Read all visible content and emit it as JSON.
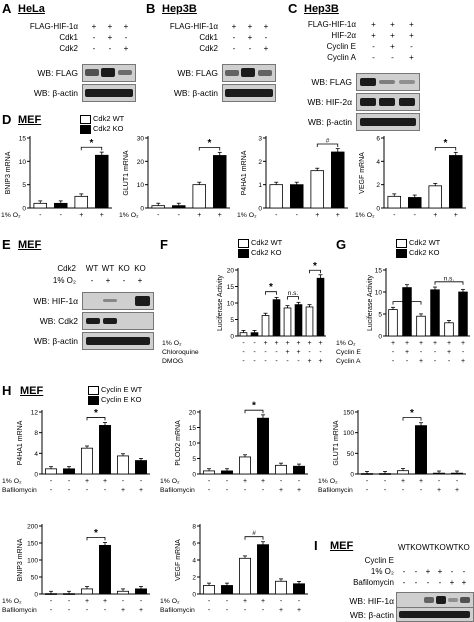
{
  "panels": {
    "A": {
      "letter": "A",
      "title": "HeLa",
      "rows": [
        "FLAG-HIF-1α",
        "Cdk1",
        "Cdk2"
      ],
      "signs": [
        [
          "+",
          "+",
          "+"
        ],
        [
          "-",
          "+",
          "-"
        ],
        [
          "-",
          "-",
          "+"
        ]
      ],
      "blots": [
        "WB: FLAG",
        "WB: β-actin"
      ]
    },
    "B": {
      "letter": "B",
      "title": "Hep3B",
      "rows": [
        "FLAG-HIF-1α",
        "Cdk1",
        "Cdk2"
      ],
      "signs": [
        [
          "+",
          "+",
          "+"
        ],
        [
          "-",
          "+",
          "-"
        ],
        [
          "-",
          "-",
          "+"
        ]
      ],
      "blots": [
        "WB: FLAG",
        "WB: β-actin"
      ]
    },
    "C": {
      "letter": "C",
      "title": "Hep3B",
      "rows": [
        "FLAG-HIF-1α",
        "HIF-2α",
        "Cyclin E",
        "Cyclin A"
      ],
      "signs": [
        [
          "+",
          "+",
          "+"
        ],
        [
          "+",
          "+",
          "+"
        ],
        [
          "-",
          "+",
          "-"
        ],
        [
          "-",
          "-",
          "+"
        ]
      ],
      "blots": [
        "WB: FLAG",
        "WB: HIF-2α",
        "WB: β-actin"
      ]
    },
    "D": {
      "letter": "D",
      "title": "MEF"
    },
    "E": {
      "letter": "E",
      "title": "MEF",
      "rows": [
        "Cdk2",
        "1% O₂"
      ],
      "headers": [
        "WT",
        "WT",
        "KO",
        "KO"
      ],
      "signs": [
        [
          "-",
          "+",
          "-",
          "+"
        ]
      ],
      "blots": [
        "WB: HIF-1α",
        "WB: Cdk2",
        "WB: β-actin"
      ]
    },
    "F": {
      "letter": "F"
    },
    "G": {
      "letter": "G"
    },
    "H": {
      "letter": "H",
      "title": "MEF"
    },
    "I": {
      "letter": "I",
      "title": "MEF",
      "rows": [
        "Cyclin E",
        "1% O₂",
        "Bafilomycin"
      ],
      "headers": [
        "WT",
        "KO",
        "WT",
        "KO",
        "WT",
        "KO"
      ],
      "signs": [
        [
          "-",
          "-",
          "+",
          "+",
          "-",
          "-"
        ],
        [
          "-",
          "-",
          "-",
          "-",
          "+",
          "+"
        ]
      ],
      "blots": [
        "WB: HIF-1α",
        "WB: β-actin"
      ]
    }
  },
  "legends": {
    "cdk2": [
      "Cdk2 WT",
      "Cdk2 KO"
    ],
    "cyclinE": [
      "Cyclin E WT",
      "Cyclin E KO"
    ]
  },
  "rowlabels": {
    "o2": "1% O₂",
    "chloroquine": "Chloroquine",
    "dmog": "DMOG",
    "cyclinE": "Cyclin E",
    "cyclinA": "Cyclin A",
    "bafilomycin": "Bafilomycin"
  },
  "chart_data": [
    {
      "id": "D1",
      "type": "bar",
      "ylabel": "BNIP3 mRNA",
      "ylim": [
        0,
        15
      ],
      "yticks": [
        0,
        5,
        10,
        15
      ],
      "series": [
        {
          "name": "Cdk2 WT",
          "values": [
            1.0,
            2.5
          ]
        },
        {
          "name": "Cdk2 KO",
          "values": [
            1.0,
            11.3
          ]
        }
      ],
      "conditions": {
        "1% O₂": [
          "-",
          "-",
          "+",
          "+"
        ]
      },
      "annotation": "*"
    },
    {
      "id": "D2",
      "type": "bar",
      "ylabel": "GLUT1 mRNA",
      "ylim": [
        0,
        30
      ],
      "yticks": [
        0,
        10,
        20,
        30
      ],
      "series": [
        {
          "name": "Cdk2 WT",
          "values": [
            1.0,
            10.0
          ]
        },
        {
          "name": "Cdk2 KO",
          "values": [
            1.0,
            22.5
          ]
        }
      ],
      "conditions": {
        "1% O₂": [
          "-",
          "-",
          "+",
          "+"
        ]
      },
      "annotation": "*"
    },
    {
      "id": "D3",
      "type": "bar",
      "ylabel": "P4HA1 mRNA",
      "ylim": [
        0,
        3
      ],
      "yticks": [
        0,
        1,
        2,
        3
      ],
      "series": [
        {
          "name": "Cdk2 WT",
          "values": [
            1.0,
            1.6
          ]
        },
        {
          "name": "Cdk2 KO",
          "values": [
            1.0,
            2.4
          ]
        }
      ],
      "conditions": {
        "1% O₂": [
          "-",
          "-",
          "+",
          "+"
        ]
      },
      "annotation": "#"
    },
    {
      "id": "D4",
      "type": "bar",
      "ylabel": "VEGF mRNA",
      "ylim": [
        0,
        6
      ],
      "yticks": [
        0,
        2,
        4,
        6
      ],
      "series": [
        {
          "name": "Cdk2 WT",
          "values": [
            1.0,
            1.9
          ]
        },
        {
          "name": "Cdk2 KO",
          "values": [
            0.9,
            4.5
          ]
        }
      ],
      "conditions": {
        "1% O₂": [
          "-",
          "-",
          "+",
          "+"
        ]
      },
      "annotation": "*"
    },
    {
      "id": "F",
      "type": "bar",
      "ylabel": "Luciferase Activity",
      "ylim": [
        0,
        20
      ],
      "yticks": [
        0,
        5,
        10,
        15,
        20
      ],
      "series": [
        {
          "name": "Cdk2 WT",
          "values": [
            1.0,
            6.2,
            8.5,
            8.8
          ]
        },
        {
          "name": "Cdk2 KO",
          "values": [
            1.0,
            11.0,
            9.5,
            17.5
          ]
        }
      ],
      "conditions": {
        "1% O₂": [
          "-",
          "-",
          "+",
          "+",
          "+",
          "+",
          "+",
          "+"
        ],
        "Chloroquine": [
          "-",
          "-",
          "-",
          "-",
          "+",
          "+",
          "-",
          "-"
        ],
        "DMOG": [
          "-",
          "-",
          "-",
          "-",
          "-",
          "-",
          "+",
          "+"
        ]
      },
      "annotations": [
        "*",
        "n.s.",
        "*"
      ]
    },
    {
      "id": "G",
      "type": "bar",
      "ylabel": "Luciferase Activity",
      "ylim": [
        0,
        15
      ],
      "yticks": [
        0,
        5,
        10,
        15
      ],
      "series": [
        {
          "name": "Cdk2 WT",
          "values": [
            6.0,
            4.5,
            3.0
          ]
        },
        {
          "name": "Cdk2 KO",
          "values": [
            11.0,
            10.5,
            10.0
          ]
        }
      ],
      "conditions": {
        "1% O₂": [
          "+",
          "+",
          "+",
          "+",
          "+",
          "+"
        ],
        "Cyclin E": [
          "-",
          "+",
          "-",
          "-",
          "+",
          "-"
        ],
        "Cyclin A": [
          "-",
          "-",
          "+",
          "-",
          "-",
          "+"
        ]
      },
      "annotations": [
        "*",
        "n.s."
      ]
    },
    {
      "id": "H1",
      "type": "bar",
      "ylabel": "P4HA1 mRNA",
      "ylim": [
        0,
        12
      ],
      "yticks": [
        0,
        4,
        8,
        12
      ],
      "series": [
        {
          "name": "Cyclin E WT",
          "values": [
            1.0,
            5.0,
            3.5
          ]
        },
        {
          "name": "Cyclin E KO",
          "values": [
            1.0,
            9.4,
            2.6
          ]
        }
      ],
      "conditions": {
        "1% O₂": [
          "-",
          "-",
          "+",
          "+",
          "-",
          "-"
        ],
        "Bafilomycin": [
          "-",
          "-",
          "-",
          "-",
          "+",
          "+"
        ]
      },
      "annotation": "*"
    },
    {
      "id": "H2",
      "type": "bar",
      "ylabel": "PLOD2 mRNA",
      "ylim": [
        0,
        20
      ],
      "yticks": [
        0,
        5,
        10,
        15,
        20
      ],
      "series": [
        {
          "name": "Cyclin E WT",
          "values": [
            1.0,
            5.5,
            2.8
          ]
        },
        {
          "name": "Cyclin E KO",
          "values": [
            1.0,
            18.0,
            2.5
          ]
        }
      ],
      "conditions": {
        "1% O₂": [
          "-",
          "-",
          "+",
          "+",
          "-",
          "-"
        ],
        "Bafilomycin": [
          "-",
          "-",
          "-",
          "-",
          "+",
          "+"
        ]
      },
      "annotation": "*"
    },
    {
      "id": "H3",
      "type": "bar",
      "ylabel": "GLUT1 mRNA",
      "ylim": [
        0,
        150
      ],
      "yticks": [
        0,
        50,
        100,
        150
      ],
      "series": [
        {
          "name": "Cyclin E WT",
          "values": [
            1.0,
            8.0,
            2.0
          ]
        },
        {
          "name": "Cyclin E KO",
          "values": [
            1.0,
            117.0,
            2.0
          ]
        }
      ],
      "conditions": {
        "1% O₂": [
          "-",
          "-",
          "+",
          "+",
          "-",
          "-"
        ],
        "Bafilomycin": [
          "-",
          "-",
          "-",
          "-",
          "+",
          "+"
        ]
      },
      "annotation": "*"
    },
    {
      "id": "H4",
      "type": "bar",
      "ylabel": "BNIP3 mRNA",
      "ylim": [
        0,
        200
      ],
      "yticks": [
        0,
        50,
        100,
        150,
        200
      ],
      "series": [
        {
          "name": "Cyclin E WT",
          "values": [
            1.0,
            15.0,
            8.0
          ]
        },
        {
          "name": "Cyclin E KO",
          "values": [
            1.0,
            143.0,
            15.0
          ]
        }
      ],
      "conditions": {
        "1% O₂": [
          "-",
          "-",
          "+",
          "+",
          "-",
          "-"
        ],
        "Bafilomycin": [
          "-",
          "-",
          "-",
          "-",
          "+",
          "+"
        ]
      },
      "annotation": "*"
    },
    {
      "id": "H5",
      "type": "bar",
      "ylabel": "VEGF mRNA",
      "ylim": [
        0,
        8
      ],
      "yticks": [
        0,
        2,
        4,
        6,
        8
      ],
      "series": [
        {
          "name": "Cyclin E WT",
          "values": [
            1.0,
            4.2,
            1.5
          ]
        },
        {
          "name": "Cyclin E KO",
          "values": [
            1.0,
            5.8,
            1.2
          ]
        }
      ],
      "conditions": {
        "1% O₂": [
          "-",
          "-",
          "+",
          "+",
          "-",
          "-"
        ],
        "Bafilomycin": [
          "-",
          "-",
          "-",
          "-",
          "+",
          "+"
        ]
      },
      "annotation": "#"
    }
  ]
}
